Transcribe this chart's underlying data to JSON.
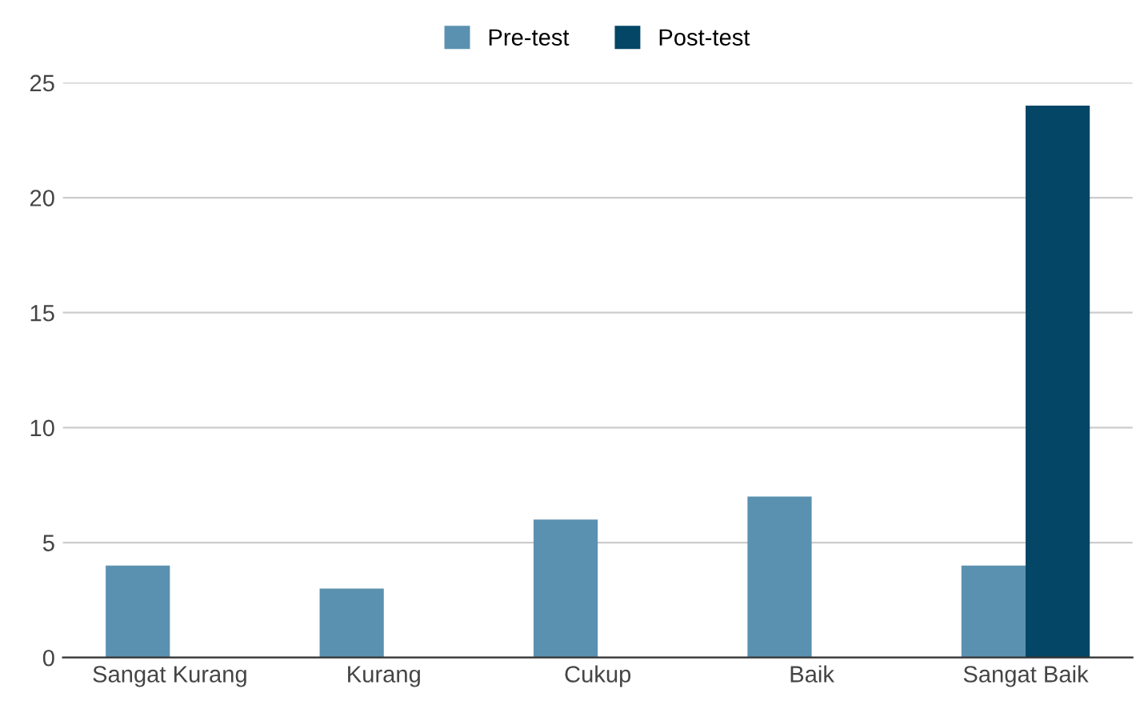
{
  "chart_data": {
    "type": "bar",
    "categories": [
      "Sangat Kurang",
      "Kurang",
      "Cukup",
      "Baik",
      "Sangat Baik"
    ],
    "series": [
      {
        "name": "Pre-test",
        "color": "#5b91b0",
        "values": [
          4,
          3,
          6,
          7,
          4
        ]
      },
      {
        "name": "Post-test",
        "color": "#034666",
        "values": [
          0,
          0,
          0,
          0,
          24
        ]
      }
    ],
    "ylim": [
      0,
      25
    ],
    "yticks": [
      0,
      5,
      10,
      15,
      20,
      25
    ],
    "grid": "y",
    "legend": "top"
  }
}
